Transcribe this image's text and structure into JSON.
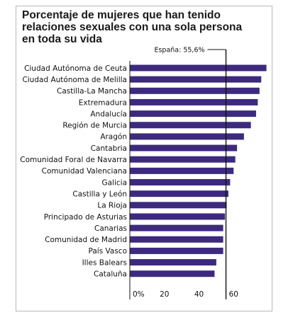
{
  "chart_data": {
    "type": "bar",
    "orientation": "horizontal",
    "title": "Porcentaje de mujeres que han tenido relaciones sexuales con una sola persona en toda su vida",
    "title_lines": [
      "Porcentaje de mujeres que han tenido",
      "relaciones sexuales con una sola persona",
      "en toda su vida"
    ],
    "reference": {
      "label": "España: 55,6%",
      "value": 55.6
    },
    "categories": [
      "Ciudad Autónoma de Ceuta",
      "Ciudad Autónoma de Melilla",
      "Castilla-La Mancha",
      "Extremadura",
      "Andalucía",
      "Región de Murcia",
      "Aragón",
      "Cantabria",
      "Comunidad Foral de Navarra",
      "Comunidad Valenciana",
      "Galicia",
      "Castilla y León",
      "La Rioja",
      "Principado de Asturias",
      "Canarias",
      "Comunidad de Madrid",
      "País Vasco",
      "Illes Balears",
      "Cataluña"
    ],
    "values": [
      79,
      76,
      75,
      74,
      73,
      70,
      66,
      62,
      61,
      60,
      58,
      57,
      56,
      55,
      54,
      54,
      54,
      50,
      49
    ],
    "xlim": [
      0,
      80
    ],
    "xticks": [
      "0%",
      "20",
      "40",
      "60"
    ],
    "xtick_values": [
      0,
      20,
      40,
      60
    ],
    "bar_color": "#3d2a7f",
    "axis_color": "#111111",
    "grid": false
  }
}
